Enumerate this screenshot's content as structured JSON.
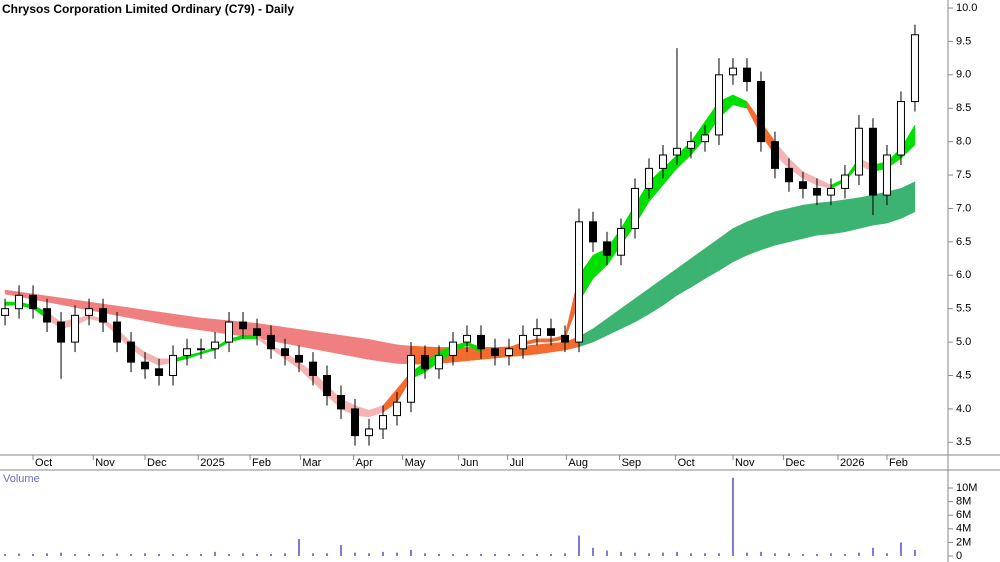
{
  "chart_data": {
    "type": "candlestick",
    "title": "Chrysos Corporation Limited Ordinary (C79) - Daily",
    "x": [
      0,
      1,
      2,
      3,
      4,
      5,
      6,
      7,
      8,
      9,
      10,
      11,
      12,
      13,
      14,
      15,
      16,
      17,
      18,
      19,
      20,
      21,
      22,
      23,
      24,
      25,
      26,
      27,
      28,
      29,
      30,
      31,
      32,
      33,
      34,
      35,
      36,
      37,
      38,
      39,
      40,
      41,
      42,
      43,
      44,
      45,
      46,
      47,
      48,
      49,
      50,
      51,
      52,
      53,
      54,
      55,
      56,
      57,
      58,
      59,
      60,
      61,
      62,
      63,
      64,
      65
    ],
    "open": [
      5.4,
      5.5,
      5.7,
      5.5,
      5.3,
      5.0,
      5.4,
      5.5,
      5.3,
      5.0,
      4.7,
      4.6,
      4.5,
      4.8,
      4.9,
      4.9,
      5.0,
      5.3,
      5.2,
      5.1,
      4.9,
      4.8,
      4.7,
      4.5,
      4.2,
      4.0,
      3.6,
      3.7,
      3.9,
      4.1,
      4.8,
      4.6,
      4.8,
      5.0,
      5.1,
      4.9,
      4.8,
      4.9,
      5.1,
      5.2,
      5.1,
      5.0,
      6.8,
      6.5,
      6.3,
      6.7,
      7.3,
      7.6,
      7.8,
      7.9,
      8.0,
      8.1,
      9.0,
      9.1,
      8.9,
      8.0,
      7.6,
      7.4,
      7.3,
      7.2,
      7.3,
      7.5,
      8.2,
      7.2,
      7.8,
      8.6
    ],
    "high": [
      5.65,
      5.85,
      5.85,
      5.65,
      5.45,
      5.55,
      5.65,
      5.65,
      5.45,
      5.15,
      4.85,
      4.75,
      4.95,
      5.05,
      5.05,
      5.15,
      5.45,
      5.45,
      5.35,
      5.25,
      5.05,
      4.95,
      4.85,
      4.65,
      4.35,
      4.15,
      3.85,
      4.05,
      4.25,
      5.0,
      4.95,
      4.95,
      5.15,
      5.25,
      5.25,
      5.05,
      5.05,
      5.25,
      5.35,
      5.35,
      5.25,
      7.0,
      6.95,
      6.65,
      6.85,
      7.45,
      7.75,
      7.95,
      9.4,
      8.15,
      8.25,
      9.25,
      9.25,
      9.25,
      9.05,
      8.15,
      7.75,
      7.55,
      7.45,
      7.45,
      7.65,
      8.4,
      8.35,
      7.95,
      8.75,
      9.75
    ],
    "low": [
      5.25,
      5.35,
      5.35,
      5.15,
      4.45,
      4.85,
      5.25,
      5.15,
      4.85,
      4.55,
      4.45,
      4.35,
      4.35,
      4.65,
      4.75,
      4.75,
      4.85,
      5.05,
      4.95,
      4.75,
      4.65,
      4.55,
      4.35,
      4.05,
      3.85,
      3.45,
      3.45,
      3.55,
      3.75,
      3.95,
      4.45,
      4.45,
      4.65,
      4.85,
      4.75,
      4.65,
      4.65,
      4.75,
      4.95,
      4.95,
      4.85,
      4.85,
      6.35,
      6.15,
      6.15,
      6.55,
      7.15,
      7.45,
      7.65,
      7.75,
      7.85,
      7.95,
      8.85,
      8.75,
      7.85,
      7.45,
      7.25,
      7.15,
      7.05,
      7.05,
      7.15,
      7.35,
      6.9,
      7.05,
      7.65,
      8.45
    ],
    "close": [
      5.5,
      5.7,
      5.5,
      5.3,
      5.0,
      5.4,
      5.5,
      5.3,
      5.0,
      4.7,
      4.6,
      4.5,
      4.8,
      4.9,
      4.9,
      5.0,
      5.3,
      5.2,
      5.1,
      4.9,
      4.8,
      4.7,
      4.5,
      4.2,
      4.0,
      3.6,
      3.7,
      3.9,
      4.1,
      4.8,
      4.6,
      4.8,
      5.0,
      5.1,
      4.9,
      4.8,
      4.9,
      5.1,
      5.2,
      5.1,
      5.0,
      6.8,
      6.5,
      6.3,
      6.7,
      7.3,
      7.6,
      7.8,
      7.9,
      8.0,
      8.1,
      9.0,
      9.1,
      8.9,
      8.0,
      7.6,
      7.4,
      7.3,
      7.2,
      7.3,
      7.5,
      8.2,
      7.2,
      7.8,
      8.6,
      9.6
    ],
    "bands": [
      {
        "upper": [
          5.78,
          5.75,
          5.72,
          5.69,
          5.66,
          5.63,
          5.6,
          5.57,
          5.54,
          5.51,
          5.48,
          5.45,
          5.42,
          5.39,
          5.36,
          5.34,
          5.32,
          5.3,
          5.28,
          5.25,
          5.22,
          5.19,
          5.16,
          5.13,
          5.1,
          5.07,
          5.04,
          5.0,
          4.96,
          4.94,
          4.93,
          4.92,
          4.92,
          4.92,
          4.92,
          4.92,
          4.93,
          4.94,
          4.96,
          4.98,
          5.0,
          5.08,
          5.2,
          5.35,
          5.5,
          5.65,
          5.8,
          5.95,
          6.1,
          6.25,
          6.4,
          6.55,
          6.7,
          6.8,
          6.88,
          6.95,
          7.0,
          7.05,
          7.08,
          7.1,
          7.13,
          7.16,
          7.2,
          7.25,
          7.3,
          7.4
        ],
        "lower": [
          5.72,
          5.68,
          5.64,
          5.6,
          5.56,
          5.52,
          5.48,
          5.44,
          5.4,
          5.36,
          5.32,
          5.28,
          5.24,
          5.21,
          5.18,
          5.15,
          5.12,
          5.09,
          5.06,
          5.02,
          4.98,
          4.94,
          4.9,
          4.86,
          4.82,
          4.78,
          4.74,
          4.71,
          4.68,
          4.67,
          4.67,
          4.68,
          4.7,
          4.72,
          4.74,
          4.76,
          4.78,
          4.8,
          4.82,
          4.85,
          4.88,
          4.93,
          5.0,
          5.1,
          5.2,
          5.3,
          5.42,
          5.55,
          5.7,
          5.82,
          5.95,
          6.07,
          6.2,
          6.3,
          6.38,
          6.45,
          6.5,
          6.55,
          6.6,
          6.62,
          6.65,
          6.7,
          6.75,
          6.78,
          6.85,
          6.95
        ],
        "colors": [
          "#f08080",
          "#f08080",
          "#f08080",
          "#f08080",
          "#f08080",
          "#f08080",
          "#f08080",
          "#f08080",
          "#f08080",
          "#f08080",
          "#f08080",
          "#f08080",
          "#f08080",
          "#f08080",
          "#f08080",
          "#f08080",
          "#f08080",
          "#f08080",
          "#f08080",
          "#f08080",
          "#f08080",
          "#f08080",
          "#f08080",
          "#f08080",
          "#f08080",
          "#f08080",
          "#f08080",
          "#f08080",
          "#f08080",
          "#f26b2f",
          "#f26b2f",
          "#f26b2f",
          "#f26b2f",
          "#f26b2f",
          "#f26b2f",
          "#f26b2f",
          "#f26b2f",
          "#f26b2f",
          "#f26b2f",
          "#f26b2f",
          "#f26b2f",
          "#3cb371",
          "#3cb371",
          "#3cb371",
          "#3cb371",
          "#3cb371",
          "#3cb371",
          "#3cb371",
          "#3cb371",
          "#3cb371",
          "#3cb371",
          "#3cb371",
          "#3cb371",
          "#3cb371",
          "#3cb371",
          "#3cb371",
          "#3cb371",
          "#3cb371",
          "#3cb371",
          "#3cb371",
          "#3cb371",
          "#3cb371",
          "#3cb371",
          "#3cb371",
          "#3cb371",
          "#3cb371"
        ]
      },
      {
        "upper": [
          5.6,
          5.6,
          5.55,
          5.45,
          5.3,
          5.35,
          5.4,
          5.35,
          5.2,
          5.0,
          4.85,
          4.75,
          4.75,
          4.8,
          4.85,
          4.92,
          5.05,
          5.1,
          5.1,
          4.95,
          4.85,
          4.7,
          4.55,
          4.35,
          4.15,
          4.05,
          3.98,
          4.05,
          4.3,
          4.55,
          4.7,
          4.85,
          4.95,
          5.0,
          4.92,
          4.88,
          4.92,
          5.0,
          5.05,
          5.05,
          5.1,
          6.0,
          6.3,
          6.4,
          6.7,
          7.05,
          7.4,
          7.6,
          7.8,
          8.0,
          8.3,
          8.6,
          8.7,
          8.6,
          8.3,
          8.0,
          7.75,
          7.55,
          7.45,
          7.35,
          7.45,
          7.75,
          7.65,
          7.7,
          7.9,
          8.25
        ],
        "lower": [
          5.55,
          5.55,
          5.5,
          5.35,
          5.2,
          5.25,
          5.35,
          5.3,
          5.1,
          4.9,
          4.75,
          4.65,
          4.7,
          4.75,
          4.82,
          4.88,
          5.0,
          5.05,
          5.05,
          4.9,
          4.75,
          4.6,
          4.4,
          4.2,
          4.0,
          3.9,
          3.88,
          3.95,
          4.1,
          4.45,
          4.55,
          4.7,
          4.85,
          4.95,
          4.85,
          4.82,
          4.85,
          4.95,
          5.0,
          5.0,
          5.05,
          5.6,
          5.95,
          6.15,
          6.45,
          6.75,
          7.1,
          7.35,
          7.6,
          7.8,
          8.05,
          8.35,
          8.55,
          8.5,
          8.1,
          7.8,
          7.6,
          7.45,
          7.35,
          7.3,
          7.4,
          7.65,
          7.55,
          7.6,
          7.75,
          7.95
        ],
        "colors": [
          "#00e000",
          "#00e000",
          "#00e000",
          "#f7b3b3",
          "#f7b3b3",
          "#f7b3b3",
          "#f7b3b3",
          "#f7b3b3",
          "#f7b3b3",
          "#f7b3b3",
          "#f7b3b3",
          "#f7b3b3",
          "#00e000",
          "#00e000",
          "#00e000",
          "#00e000",
          "#00e000",
          "#00e000",
          "#f7b3b3",
          "#f7b3b3",
          "#f7b3b3",
          "#f7b3b3",
          "#f7b3b3",
          "#f7b3b3",
          "#f7b3b3",
          "#f7b3b3",
          "#f7b3b3",
          "#f26b2f",
          "#f26b2f",
          "#00e000",
          "#00e000",
          "#00e000",
          "#00e000",
          "#00e000",
          "#f26b2f",
          "#f26b2f",
          "#f26b2f",
          "#f26b2f",
          "#f26b2f",
          "#f26b2f",
          "#f26b2f",
          "#00e000",
          "#00e000",
          "#00e000",
          "#00e000",
          "#00e000",
          "#00e000",
          "#00e000",
          "#00e000",
          "#00e000",
          "#00e000",
          "#00e000",
          "#00e000",
          "#f26b2f",
          "#f26b2f",
          "#f7b3b3",
          "#f7b3b3",
          "#f7b3b3",
          "#f7b3b3",
          "#00e000",
          "#00e000",
          "#f7b3b3",
          "#00e000",
          "#00e000",
          "#00e000",
          "#00e000"
        ]
      }
    ],
    "xlim": [
      -0.36,
      67.36
    ],
    "xticks": [
      {
        "value": 2,
        "label": "Oct"
      },
      {
        "value": 6.3,
        "label": "Nov"
      },
      {
        "value": 10,
        "label": "Dec"
      },
      {
        "value": 13.8,
        "label": "2025"
      },
      {
        "value": 17.5,
        "label": "Feb"
      },
      {
        "value": 21.1,
        "label": "Mar"
      },
      {
        "value": 24.9,
        "label": "Apr"
      },
      {
        "value": 28.4,
        "label": "May"
      },
      {
        "value": 32.4,
        "label": "Jun"
      },
      {
        "value": 35.9,
        "label": "Jul"
      },
      {
        "value": 40.1,
        "label": "Aug"
      },
      {
        "value": 43.9,
        "label": "Sep"
      },
      {
        "value": 47.9,
        "label": "Oct"
      },
      {
        "value": 52,
        "label": "Nov"
      },
      {
        "value": 55.6,
        "label": "Dec"
      },
      {
        "value": 59.5,
        "label": "2026"
      },
      {
        "value": 63,
        "label": "Feb"
      }
    ],
    "ylim": [
      3.31,
      10.12
    ],
    "yticks": [
      3.5,
      {
        "value": 4,
        "label": "4.0"
      },
      4.5,
      {
        "value": 5,
        "label": "5.0"
      },
      5.5,
      {
        "value": 6,
        "label": "6.0"
      },
      6.5,
      {
        "value": 7,
        "label": "7.0"
      },
      7.5,
      {
        "value": 8,
        "label": "8.0"
      },
      8.5,
      {
        "value": 9,
        "label": "9.0"
      },
      9.5,
      {
        "value": 10,
        "label": "10.0"
      }
    ],
    "volume": {
      "label": "Volume",
      "color": "#7b7bd6",
      "values": [
        300000,
        350000,
        300000,
        400000,
        500000,
        300000,
        300000,
        300000,
        350000,
        300000,
        400000,
        300000,
        300000,
        300000,
        300000,
        600000,
        300000,
        400000,
        300000,
        300000,
        400000,
        2500000,
        400000,
        400000,
        1600000,
        500000,
        400000,
        600000,
        500000,
        900000,
        400000,
        300000,
        300000,
        300000,
        300000,
        300000,
        300000,
        300000,
        300000,
        300000,
        400000,
        3000000,
        1200000,
        800000,
        600000,
        500000,
        400000,
        500000,
        600000,
        400000,
        400000,
        400000,
        11500000,
        500000,
        600000,
        400000,
        400000,
        300000,
        300000,
        400000,
        300000,
        500000,
        1200000,
        400000,
        2000000,
        900000
      ],
      "ylim": [
        -590000,
        12650000
      ],
      "yticks": [
        0,
        {
          "value": 2000000,
          "label": "2M"
        },
        {
          "value": 4000000,
          "label": "4M"
        },
        {
          "value": 6000000,
          "label": "6M"
        },
        {
          "value": 8000000,
          "label": "8M"
        },
        {
          "value": 10000000,
          "label": "10M"
        }
      ]
    }
  }
}
